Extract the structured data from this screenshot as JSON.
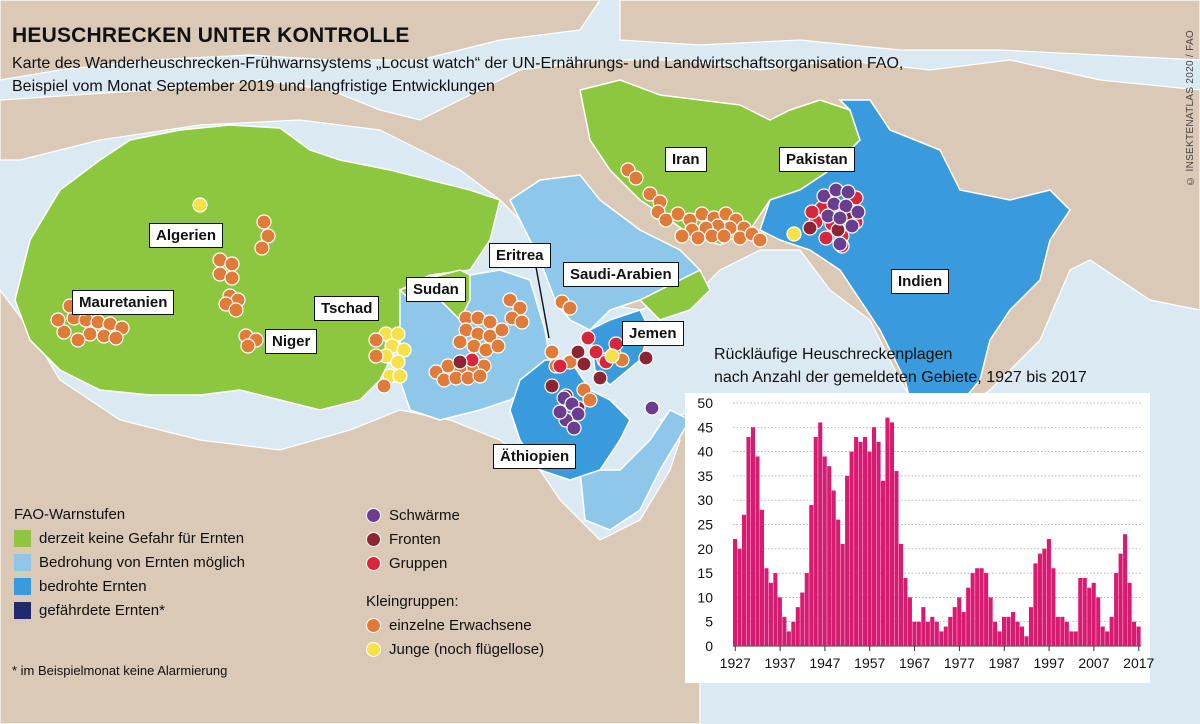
{
  "title": "HEUSCHRECKEN UNTER KONTROLLE",
  "subtitle_line1": "Karte des Wanderheuschrecken-Frühwarnsystems „Locust watch“ der UN-Ernährungs- und Landwirtschaftsorganisation FAO,",
  "subtitle_line2": "Beispiel vom Monat September 2019 und langfristige Entwicklungen",
  "credit": "© INSEKTENATLAS 2020 / FAO",
  "colors": {
    "water": "#dbe9f3",
    "land_other": "#d9c9b6",
    "green": "#8dc63f",
    "light_blue": "#8dc8ea",
    "blue": "#3a9bdc",
    "dark_blue": "#1f2b6e",
    "swarm": "#6a3d8f",
    "front": "#8b2433",
    "group": "#d7263d",
    "adult": "#e07b39",
    "hopper": "#f7e14a",
    "bar": "#d81b70"
  },
  "country_labels": {
    "algerien": "Algerien",
    "mauretanien": "Mauretanien",
    "niger": "Niger",
    "tschad": "Tschad",
    "sudan": "Sudan",
    "eritrea": "Eritrea",
    "saudi": "Saudi-Arabien",
    "jemen": "Jemen",
    "aethiopien": "Äthiopien",
    "iran": "Iran",
    "pakistan": "Pakistan",
    "indien": "Indien"
  },
  "legend": {
    "warn_title": "FAO-Warnstufen",
    "warn_levels": [
      {
        "label": "derzeit keine Gefahr für Ernten",
        "color": "#8dc63f"
      },
      {
        "label": "Bedrohung von Ernten möglich",
        "color": "#8dc8ea"
      },
      {
        "label": "bedrohte Ernten",
        "color": "#3a9bdc"
      },
      {
        "label": "gefährdete Ernten*",
        "color": "#1f2b6e"
      }
    ],
    "swarms": "Schwärme",
    "fronts": "Fronten",
    "groups": "Gruppen",
    "small_groups_title": "Kleingruppen:",
    "adults": "einzelne Erwachsene",
    "hoppers": "Junge (noch flügellose)"
  },
  "footnote": "* im Beispielmonat keine Alarmierung",
  "chart_data": {
    "type": "bar",
    "title": "Rückläufige Heuschreckenplagen nach Anzahl der gemeldeten Gebiete, 1927 bis 2017",
    "title_line1": "Rückläufige Heuschreckenplagen",
    "title_line2": "nach Anzahl der gemeldeten Gebiete, 1927 bis 2017",
    "x_start": 1927,
    "x_end": 2017,
    "x_ticks": [
      1927,
      1937,
      1947,
      1957,
      1967,
      1977,
      1987,
      1997,
      2007,
      2017
    ],
    "y_ticks": [
      0,
      5,
      10,
      15,
      20,
      25,
      30,
      35,
      40,
      45,
      50
    ],
    "ylim": [
      0,
      50
    ],
    "grid": true,
    "values": [
      22,
      20,
      27,
      43,
      45,
      39,
      28,
      16,
      13,
      15,
      10,
      6,
      3,
      5,
      8,
      11,
      15,
      29,
      43,
      46,
      39,
      37,
      32,
      26,
      21,
      35,
      40,
      43,
      42,
      43,
      40,
      45,
      42,
      34,
      47,
      46,
      36,
      21,
      14,
      10,
      5,
      5,
      8,
      5,
      6,
      5,
      3,
      4,
      6,
      8,
      10,
      7,
      12,
      15,
      16,
      16,
      15,
      10,
      5,
      3,
      6,
      6,
      7,
      5,
      4,
      2,
      8,
      17,
      19,
      20,
      22,
      16,
      6,
      6,
      5,
      3,
      3,
      14,
      14,
      12,
      13,
      10,
      4,
      3,
      6,
      15,
      19,
      23,
      13,
      5,
      4,
      6,
      8,
      9,
      10,
      7,
      5,
      2,
      5
    ],
    "note": ""
  }
}
